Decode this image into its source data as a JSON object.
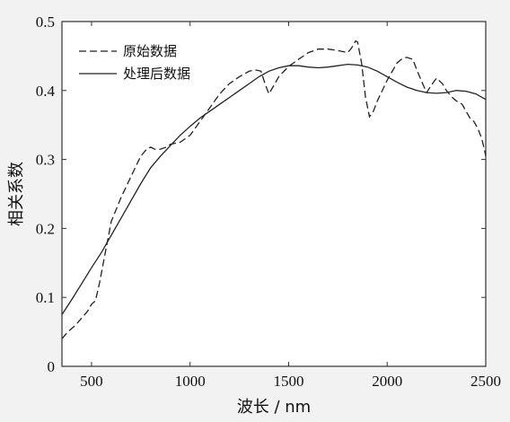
{
  "chart_data": {
    "type": "line",
    "title": "",
    "xlabel": "波长 / nm",
    "ylabel": "相关系数",
    "xlim": [
      350,
      2500
    ],
    "ylim": [
      0,
      0.5
    ],
    "xticks": [
      500,
      1000,
      1500,
      2000,
      2500
    ],
    "yticks": [
      0,
      0.1,
      0.2,
      0.3,
      0.4,
      0.5
    ],
    "ytick_labels": [
      "0",
      "0.1",
      "0.2",
      "0.3",
      "0.4",
      "0.5"
    ],
    "grid": false,
    "legend_position": "top-left",
    "series": [
      {
        "name": "原始数据",
        "style": "dashed",
        "color": "#222222",
        "x": [
          350,
          380,
          400,
          420,
          450,
          480,
          500,
          520,
          540,
          560,
          580,
          600,
          650,
          700,
          750,
          780,
          800,
          820,
          850,
          880,
          900,
          950,
          1000,
          1050,
          1100,
          1150,
          1200,
          1250,
          1300,
          1330,
          1360,
          1380,
          1400,
          1420,
          1450,
          1500,
          1550,
          1600,
          1650,
          1700,
          1750,
          1800,
          1820,
          1840,
          1850,
          1870,
          1890,
          1910,
          1930,
          1950,
          2000,
          2050,
          2080,
          2100,
          2130,
          2150,
          2180,
          2200,
          2230,
          2250,
          2280,
          2300,
          2330,
          2350,
          2380,
          2400,
          2420,
          2440,
          2460,
          2480,
          2490,
          2500
        ],
        "values": [
          0.04,
          0.05,
          0.055,
          0.06,
          0.07,
          0.08,
          0.09,
          0.095,
          0.12,
          0.15,
          0.18,
          0.21,
          0.245,
          0.275,
          0.305,
          0.315,
          0.318,
          0.315,
          0.315,
          0.318,
          0.322,
          0.325,
          0.335,
          0.355,
          0.375,
          0.395,
          0.41,
          0.42,
          0.428,
          0.43,
          0.428,
          0.41,
          0.395,
          0.405,
          0.42,
          0.435,
          0.445,
          0.455,
          0.46,
          0.46,
          0.458,
          0.455,
          0.462,
          0.472,
          0.47,
          0.44,
          0.39,
          0.362,
          0.37,
          0.385,
          0.415,
          0.44,
          0.447,
          0.448,
          0.445,
          0.43,
          0.41,
          0.397,
          0.41,
          0.418,
          0.41,
          0.4,
          0.39,
          0.385,
          0.38,
          0.37,
          0.36,
          0.355,
          0.345,
          0.33,
          0.318,
          0.305
        ]
      },
      {
        "name": "处理后数据",
        "style": "solid",
        "color": "#222222",
        "x": [
          350,
          400,
          450,
          500,
          550,
          600,
          650,
          700,
          750,
          800,
          850,
          900,
          950,
          1000,
          1050,
          1100,
          1150,
          1200,
          1250,
          1300,
          1350,
          1400,
          1450,
          1500,
          1550,
          1600,
          1650,
          1700,
          1750,
          1800,
          1850,
          1900,
          1950,
          2000,
          2050,
          2100,
          2150,
          2200,
          2250,
          2300,
          2350,
          2400,
          2450,
          2500
        ],
        "values": [
          0.075,
          0.097,
          0.12,
          0.143,
          0.165,
          0.19,
          0.215,
          0.24,
          0.265,
          0.288,
          0.305,
          0.32,
          0.335,
          0.348,
          0.36,
          0.37,
          0.38,
          0.39,
          0.4,
          0.41,
          0.42,
          0.428,
          0.433,
          0.436,
          0.436,
          0.434,
          0.433,
          0.434,
          0.436,
          0.438,
          0.437,
          0.434,
          0.428,
          0.42,
          0.412,
          0.405,
          0.4,
          0.397,
          0.396,
          0.397,
          0.4,
          0.399,
          0.395,
          0.387
        ]
      }
    ]
  }
}
